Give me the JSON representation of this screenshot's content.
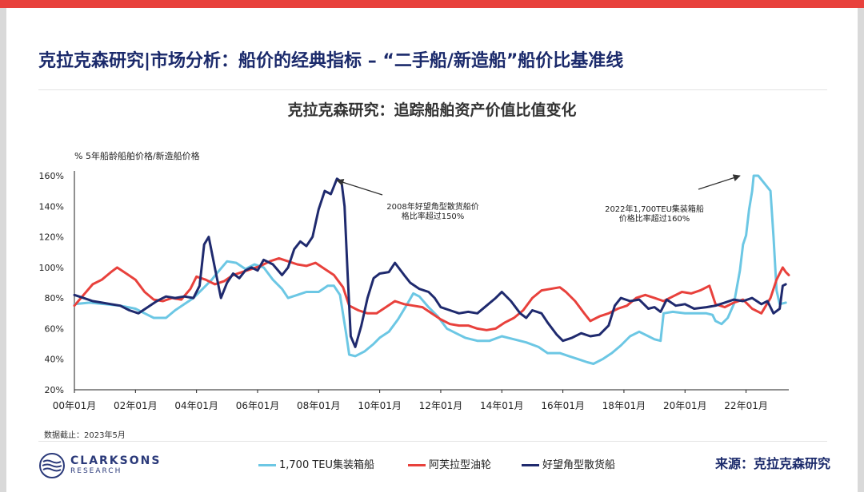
{
  "page": {
    "title": "克拉克森研究|市场分析：船价的经典指标 – “二手船/新造船”船价比基准线",
    "note": "数据截止：2023年5月",
    "source": "来源：克拉克森研究",
    "logo": {
      "name": "CLARKSONS",
      "sub": "RESEARCH"
    }
  },
  "colors": {
    "accent": "#e8413c",
    "navy": "#1b2a6b",
    "container": "#6cc7e4",
    "tanker": "#e8413c",
    "bulker": "#1f2a6e"
  },
  "chart_data": {
    "type": "line",
    "title": "克拉克森研究：追踪船舶资产价值比值变化",
    "ylabel": "% 5年船龄船舶价格/新造船价格",
    "ylim": [
      20,
      160
    ],
    "yticks": [
      "20%",
      "40%",
      "60%",
      "80%",
      "100%",
      "120%",
      "140%",
      "160%"
    ],
    "xlim": [
      2000.0,
      2023.4
    ],
    "xticks": [
      {
        "x": 2000,
        "label": "00年01月"
      },
      {
        "x": 2002,
        "label": "02年01月"
      },
      {
        "x": 2004,
        "label": "04年01月"
      },
      {
        "x": 2006,
        "label": "06年01月"
      },
      {
        "x": 2008,
        "label": "08年01月"
      },
      {
        "x": 2010,
        "label": "10年01月"
      },
      {
        "x": 2012,
        "label": "12年01月"
      },
      {
        "x": 2014,
        "label": "14年01月"
      },
      {
        "x": 2016,
        "label": "16年01月"
      },
      {
        "x": 2018,
        "label": "18年01月"
      },
      {
        "x": 2020,
        "label": "20年01月"
      },
      {
        "x": 2022,
        "label": "22年01月"
      }
    ],
    "grid": false,
    "legend_position": "bottom",
    "annotations": [
      {
        "lines": [
          "2008年好望角型散货船价",
          "格比率超过150%"
        ],
        "point": [
          2008.6,
          158
        ]
      },
      {
        "lines": [
          "2022年1,700TEU集装箱船",
          "价格比率超过160%"
        ],
        "point": [
          2021.8,
          161
        ]
      }
    ],
    "series": [
      {
        "name": "1,700 TEU集装箱船",
        "color": "#6cc7e4",
        "points": [
          [
            2000.0,
            76
          ],
          [
            2000.5,
            77
          ],
          [
            2001.0,
            76
          ],
          [
            2001.5,
            75
          ],
          [
            2002.0,
            73
          ],
          [
            2002.3,
            70
          ],
          [
            2002.6,
            67
          ],
          [
            2003.0,
            67
          ],
          [
            2003.3,
            72
          ],
          [
            2003.6,
            76
          ],
          [
            2003.9,
            80
          ],
          [
            2004.2,
            86
          ],
          [
            2004.5,
            92
          ],
          [
            2004.7,
            97
          ],
          [
            2005.0,
            104
          ],
          [
            2005.3,
            103
          ],
          [
            2005.6,
            99
          ],
          [
            2005.9,
            102
          ],
          [
            2006.2,
            100
          ],
          [
            2006.5,
            92
          ],
          [
            2006.8,
            86
          ],
          [
            2007.0,
            80
          ],
          [
            2007.3,
            82
          ],
          [
            2007.6,
            84
          ],
          [
            2008.0,
            84
          ],
          [
            2008.3,
            88
          ],
          [
            2008.5,
            88
          ],
          [
            2008.7,
            82
          ],
          [
            2008.9,
            57
          ],
          [
            2009.0,
            43
          ],
          [
            2009.2,
            42
          ],
          [
            2009.5,
            45
          ],
          [
            2009.8,
            50
          ],
          [
            2010.0,
            54
          ],
          [
            2010.3,
            58
          ],
          [
            2010.6,
            66
          ],
          [
            2010.9,
            76
          ],
          [
            2011.1,
            83
          ],
          [
            2011.3,
            81
          ],
          [
            2011.6,
            74
          ],
          [
            2011.9,
            68
          ],
          [
            2012.2,
            60
          ],
          [
            2012.5,
            57
          ],
          [
            2012.8,
            54
          ],
          [
            2013.2,
            52
          ],
          [
            2013.6,
            52
          ],
          [
            2014.0,
            55
          ],
          [
            2014.4,
            53
          ],
          [
            2014.8,
            51
          ],
          [
            2015.2,
            48
          ],
          [
            2015.5,
            44
          ],
          [
            2015.9,
            44
          ],
          [
            2016.2,
            42
          ],
          [
            2016.5,
            40
          ],
          [
            2016.8,
            38
          ],
          [
            2017.0,
            37
          ],
          [
            2017.3,
            40
          ],
          [
            2017.6,
            44
          ],
          [
            2017.9,
            49
          ],
          [
            2018.2,
            55
          ],
          [
            2018.5,
            58
          ],
          [
            2018.8,
            55
          ],
          [
            2019.0,
            53
          ],
          [
            2019.2,
            52
          ],
          [
            2019.3,
            70
          ],
          [
            2019.6,
            71
          ],
          [
            2020.0,
            70
          ],
          [
            2020.4,
            70
          ],
          [
            2020.7,
            70
          ],
          [
            2020.9,
            69
          ],
          [
            2021.0,
            65
          ],
          [
            2021.2,
            63
          ],
          [
            2021.4,
            67
          ],
          [
            2021.6,
            76
          ],
          [
            2021.8,
            98
          ],
          [
            2021.9,
            115
          ],
          [
            2022.0,
            121
          ],
          [
            2022.1,
            138
          ],
          [
            2022.2,
            150
          ],
          [
            2022.25,
            160
          ],
          [
            2022.4,
            160
          ],
          [
            2022.6,
            155
          ],
          [
            2022.8,
            150
          ],
          [
            2022.9,
            120
          ],
          [
            2023.0,
            85
          ],
          [
            2023.1,
            76
          ],
          [
            2023.3,
            77
          ]
        ]
      },
      {
        "name": "阿芙拉型油轮",
        "color": "#e8413c",
        "points": [
          [
            2000.0,
            75
          ],
          [
            2000.3,
            82
          ],
          [
            2000.6,
            89
          ],
          [
            2000.9,
            92
          ],
          [
            2001.2,
            97
          ],
          [
            2001.4,
            100
          ],
          [
            2001.7,
            96
          ],
          [
            2002.0,
            92
          ],
          [
            2002.3,
            84
          ],
          [
            2002.6,
            79
          ],
          [
            2002.9,
            78
          ],
          [
            2003.2,
            80
          ],
          [
            2003.5,
            79
          ],
          [
            2003.8,
            86
          ],
          [
            2004.0,
            94
          ],
          [
            2004.3,
            92
          ],
          [
            2004.6,
            89
          ],
          [
            2004.9,
            91
          ],
          [
            2005.2,
            95
          ],
          [
            2005.5,
            97
          ],
          [
            2005.8,
            99
          ],
          [
            2006.1,
            101
          ],
          [
            2006.4,
            104
          ],
          [
            2006.7,
            106
          ],
          [
            2007.0,
            104
          ],
          [
            2007.3,
            102
          ],
          [
            2007.6,
            101
          ],
          [
            2007.9,
            103
          ],
          [
            2008.2,
            99
          ],
          [
            2008.5,
            95
          ],
          [
            2008.8,
            87
          ],
          [
            2009.0,
            75
          ],
          [
            2009.3,
            72
          ],
          [
            2009.6,
            70
          ],
          [
            2009.9,
            70
          ],
          [
            2010.2,
            74
          ],
          [
            2010.5,
            78
          ],
          [
            2010.8,
            76
          ],
          [
            2011.1,
            75
          ],
          [
            2011.4,
            74
          ],
          [
            2011.7,
            70
          ],
          [
            2012.0,
            66
          ],
          [
            2012.3,
            63
          ],
          [
            2012.6,
            62
          ],
          [
            2012.9,
            62
          ],
          [
            2013.2,
            60
          ],
          [
            2013.5,
            59
          ],
          [
            2013.8,
            60
          ],
          [
            2014.1,
            64
          ],
          [
            2014.4,
            67
          ],
          [
            2014.7,
            72
          ],
          [
            2015.0,
            80
          ],
          [
            2015.3,
            85
          ],
          [
            2015.6,
            86
          ],
          [
            2015.9,
            87
          ],
          [
            2016.1,
            84
          ],
          [
            2016.4,
            78
          ],
          [
            2016.7,
            70
          ],
          [
            2016.9,
            65
          ],
          [
            2017.2,
            68
          ],
          [
            2017.5,
            70
          ],
          [
            2017.8,
            73
          ],
          [
            2018.1,
            75
          ],
          [
            2018.4,
            80
          ],
          [
            2018.7,
            82
          ],
          [
            2019.0,
            80
          ],
          [
            2019.3,
            78
          ],
          [
            2019.6,
            81
          ],
          [
            2019.9,
            84
          ],
          [
            2020.2,
            83
          ],
          [
            2020.5,
            85
          ],
          [
            2020.8,
            88
          ],
          [
            2021.0,
            76
          ],
          [
            2021.3,
            74
          ],
          [
            2021.6,
            77
          ],
          [
            2021.9,
            79
          ],
          [
            2022.2,
            73
          ],
          [
            2022.5,
            70
          ],
          [
            2022.8,
            80
          ],
          [
            2023.0,
            92
          ],
          [
            2023.2,
            100
          ],
          [
            2023.3,
            97
          ],
          [
            2023.4,
            95
          ]
        ]
      },
      {
        "name": "好望角型散货船",
        "color": "#1f2a6e",
        "points": [
          [
            2000.0,
            82
          ],
          [
            2000.3,
            80
          ],
          [
            2000.6,
            78
          ],
          [
            2000.9,
            77
          ],
          [
            2001.2,
            76
          ],
          [
            2001.5,
            75
          ],
          [
            2001.8,
            72
          ],
          [
            2002.1,
            70
          ],
          [
            2002.4,
            74
          ],
          [
            2002.7,
            78
          ],
          [
            2003.0,
            81
          ],
          [
            2003.3,
            80
          ],
          [
            2003.6,
            81
          ],
          [
            2003.9,
            80
          ],
          [
            2004.1,
            88
          ],
          [
            2004.25,
            115
          ],
          [
            2004.4,
            120
          ],
          [
            2004.6,
            100
          ],
          [
            2004.8,
            80
          ],
          [
            2005.0,
            90
          ],
          [
            2005.2,
            96
          ],
          [
            2005.4,
            93
          ],
          [
            2005.6,
            98
          ],
          [
            2005.8,
            100
          ],
          [
            2006.0,
            98
          ],
          [
            2006.2,
            105
          ],
          [
            2006.5,
            102
          ],
          [
            2006.8,
            95
          ],
          [
            2007.0,
            100
          ],
          [
            2007.2,
            112
          ],
          [
            2007.4,
            117
          ],
          [
            2007.6,
            114
          ],
          [
            2007.8,
            120
          ],
          [
            2008.0,
            138
          ],
          [
            2008.2,
            150
          ],
          [
            2008.4,
            148
          ],
          [
            2008.6,
            158
          ],
          [
            2008.75,
            156
          ],
          [
            2008.85,
            140
          ],
          [
            2008.95,
            95
          ],
          [
            2009.05,
            55
          ],
          [
            2009.2,
            48
          ],
          [
            2009.4,
            62
          ],
          [
            2009.6,
            80
          ],
          [
            2009.8,
            93
          ],
          [
            2010.0,
            96
          ],
          [
            2010.3,
            97
          ],
          [
            2010.5,
            103
          ],
          [
            2010.8,
            95
          ],
          [
            2011.0,
            90
          ],
          [
            2011.3,
            86
          ],
          [
            2011.6,
            84
          ],
          [
            2011.8,
            80
          ],
          [
            2012.0,
            74
          ],
          [
            2012.3,
            72
          ],
          [
            2012.6,
            70
          ],
          [
            2012.9,
            71
          ],
          [
            2013.2,
            70
          ],
          [
            2013.5,
            75
          ],
          [
            2013.8,
            80
          ],
          [
            2014.0,
            84
          ],
          [
            2014.3,
            78
          ],
          [
            2014.6,
            70
          ],
          [
            2014.8,
            67
          ],
          [
            2015.0,
            72
          ],
          [
            2015.3,
            70
          ],
          [
            2015.5,
            64
          ],
          [
            2015.8,
            56
          ],
          [
            2016.0,
            52
          ],
          [
            2016.3,
            54
          ],
          [
            2016.6,
            57
          ],
          [
            2016.9,
            55
          ],
          [
            2017.2,
            56
          ],
          [
            2017.5,
            62
          ],
          [
            2017.7,
            75
          ],
          [
            2017.9,
            80
          ],
          [
            2018.2,
            78
          ],
          [
            2018.5,
            79
          ],
          [
            2018.8,
            73
          ],
          [
            2019.0,
            74
          ],
          [
            2019.2,
            71
          ],
          [
            2019.4,
            79
          ],
          [
            2019.7,
            75
          ],
          [
            2020.0,
            76
          ],
          [
            2020.3,
            73
          ],
          [
            2020.7,
            74
          ],
          [
            2021.0,
            75
          ],
          [
            2021.3,
            77
          ],
          [
            2021.6,
            79
          ],
          [
            2021.9,
            78
          ],
          [
            2022.2,
            80
          ],
          [
            2022.5,
            76
          ],
          [
            2022.7,
            78
          ],
          [
            2022.9,
            70
          ],
          [
            2023.1,
            73
          ],
          [
            2023.2,
            88
          ],
          [
            2023.3,
            89
          ]
        ]
      }
    ]
  }
}
